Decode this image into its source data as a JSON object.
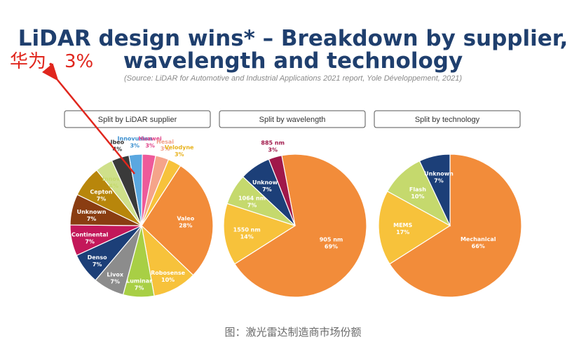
{
  "header": {
    "title_line1": "LiDAR design wins* – Breakdown by supplier,",
    "title_line2": "wavelength and technology",
    "source": "(Source: LiDAR for Automotive and Industrial Applications 2021 report, Yole Développement, 2021)"
  },
  "annotation": {
    "text": "华为，3%",
    "color": "#e0261d"
  },
  "caption": "图：激光雷达制造商市场份额",
  "colors": {
    "title": "#1f3f6e",
    "box_border": "#444444"
  },
  "chart_data": [
    {
      "type": "pie",
      "title": "Split by LiDAR supplier",
      "slices": [
        {
          "label": "Valeo",
          "value": 28,
          "pct": "28%",
          "color": "#f28c3a"
        },
        {
          "label": "Robosense",
          "value": 10,
          "pct": "10%",
          "color": "#f7c23b"
        },
        {
          "label": "Luminar",
          "value": 7,
          "pct": "7%",
          "color": "#a8cf45"
        },
        {
          "label": "Livox",
          "value": 7,
          "pct": "7%",
          "color": "#8c8c8c"
        },
        {
          "label": "Denso",
          "value": 7,
          "pct": "7%",
          "color": "#1c3f78"
        },
        {
          "label": "Continental",
          "value": 7,
          "pct": "7%",
          "color": "#c3185a"
        },
        {
          "label": "Unknown",
          "value": 7,
          "pct": "7%",
          "color": "#8a3d12"
        },
        {
          "label": "Cepton",
          "value": 7,
          "pct": "7%",
          "color": "#b8860b"
        },
        {
          "label": "Innoviz",
          "value": 4,
          "pct": "4%",
          "color": "#cfe08a"
        },
        {
          "label": "Ibeo",
          "value": 4,
          "pct": "4%",
          "color": "#3a3a3a"
        },
        {
          "label": "Innovusion",
          "value": 3,
          "pct": "3%",
          "color": "#5aa7e0"
        },
        {
          "label": "Huawei",
          "value": 3,
          "pct": "3%",
          "color": "#ee5a9a"
        },
        {
          "label": "Hesai",
          "value": 3,
          "pct": "3%",
          "color": "#f5a48a"
        },
        {
          "label": "Velodyne",
          "value": 3,
          "pct": "3%",
          "color": "#f7c23b"
        }
      ]
    },
    {
      "type": "pie",
      "title": "Split by wavelength",
      "slices": [
        {
          "label": "905 nm",
          "value": 69,
          "pct": "69%",
          "color": "#f28c3a"
        },
        {
          "label": "1550 nm",
          "value": 14,
          "pct": "14%",
          "color": "#f7c23b"
        },
        {
          "label": "1064 nm",
          "value": 7,
          "pct": "7%",
          "color": "#c5d96d"
        },
        {
          "label": "Unknown",
          "value": 7,
          "pct": "7%",
          "color": "#1c3f78"
        },
        {
          "label": "885 nm",
          "value": 3,
          "pct": "3%",
          "color": "#a0184a"
        }
      ]
    },
    {
      "type": "pie",
      "title": "Split by technology",
      "slices": [
        {
          "label": "Mechanical",
          "value": 66,
          "pct": "66%",
          "color": "#f28c3a"
        },
        {
          "label": "MEMS",
          "value": 17,
          "pct": "17%",
          "color": "#f7c23b"
        },
        {
          "label": "Flash",
          "value": 10,
          "pct": "10%",
          "color": "#c5d96d"
        },
        {
          "label": "Unknown",
          "value": 7,
          "pct": "7%",
          "color": "#1c3f78"
        }
      ]
    }
  ]
}
